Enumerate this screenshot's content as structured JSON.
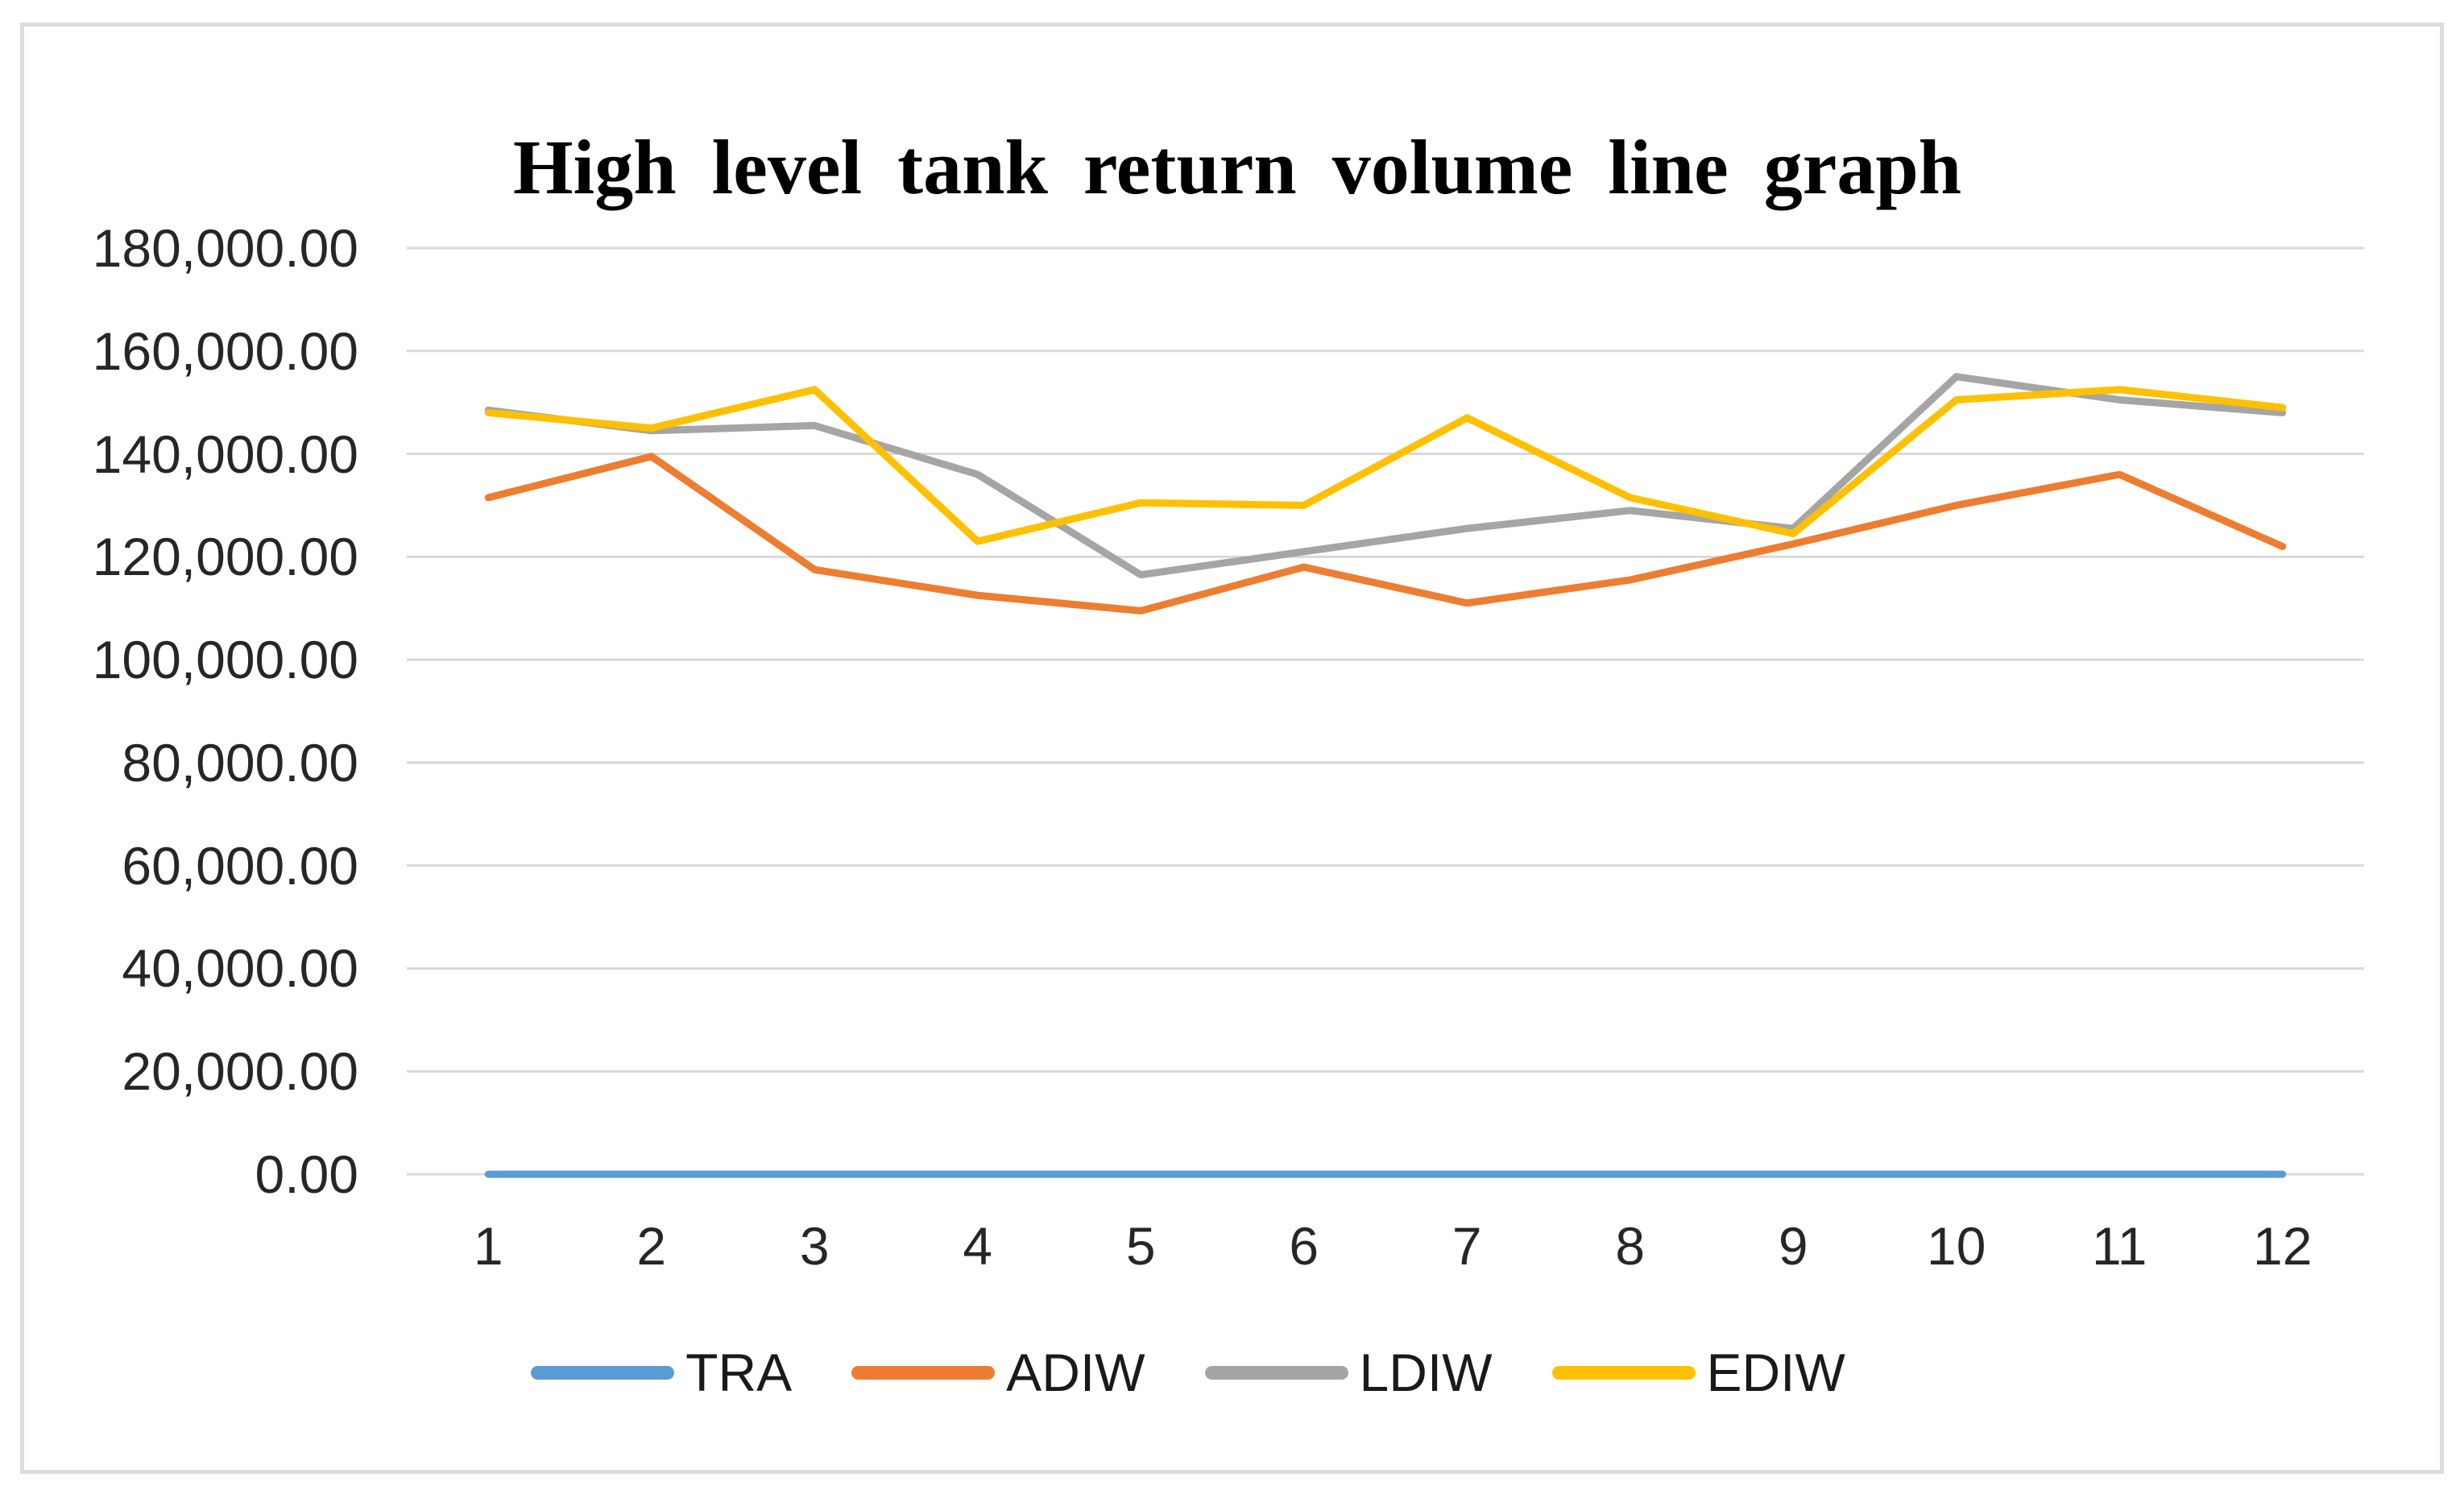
{
  "title": "High level tank return volume line graph",
  "chart_data": {
    "type": "line",
    "title": "High level tank return volume line graph",
    "categories": [
      "1",
      "2",
      "3",
      "4",
      "5",
      "6",
      "7",
      "8",
      "9",
      "10",
      "11",
      "12"
    ],
    "series": [
      {
        "name": "TRA",
        "color": "#5B9BD5",
        "values": [
          0,
          0,
          0,
          0,
          0,
          0,
          0,
          0,
          0,
          0,
          0,
          0
        ]
      },
      {
        "name": "ADIW",
        "color": "#ED7D31",
        "values": [
          131500,
          139500,
          117500,
          112500,
          109500,
          118000,
          111000,
          115500,
          122500,
          130000,
          136000,
          122000
        ]
      },
      {
        "name": "LDIW",
        "color": "#A5A5A5",
        "values": [
          148500,
          144500,
          145500,
          136000,
          116500,
          121000,
          125500,
          129000,
          125500,
          155000,
          150500,
          148000
        ]
      },
      {
        "name": "EDIW",
        "color": "#FFC000",
        "values": [
          148000,
          145000,
          152500,
          123000,
          130500,
          130000,
          147000,
          131500,
          124500,
          150500,
          152500,
          149000
        ]
      }
    ],
    "xlabel": "",
    "ylabel": "",
    "ylim": [
      0,
      180000
    ],
    "y_tick_step": 20000,
    "y_tick_labels": [
      "0.00",
      "20,000.00",
      "40,000.00",
      "60,000.00",
      "80,000.00",
      "100,000.00",
      "120,000.00",
      "140,000.00",
      "160,000.00",
      "180,000.00"
    ],
    "grid": true,
    "legend_position": "bottom",
    "gridline_color": "#D9D9D9",
    "tick_label_color": "#262626",
    "frame_border_color": "#DDDDDD"
  }
}
